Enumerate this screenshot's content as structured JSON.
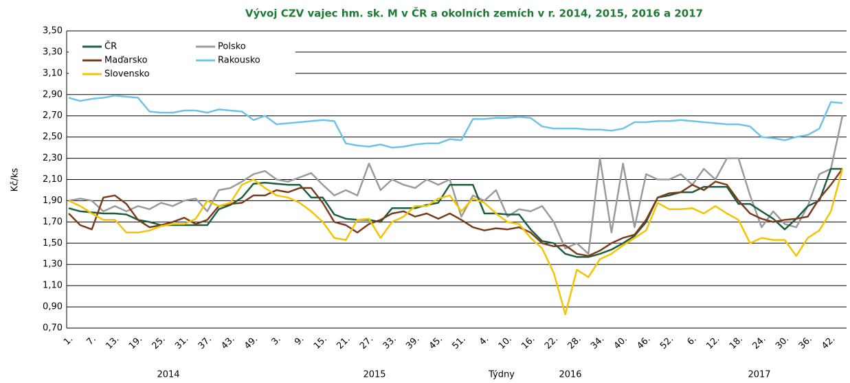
{
  "chart_data": {
    "type": "line",
    "title": "Vývoj CZV vajec hm. sk. M v ČR a okolních  zemích v r. 2014, 2015, 2016 a 2017",
    "ylabel": "Kč/ks",
    "xlabel": "Týdny",
    "year_labels": [
      "2014",
      "2015",
      "2016",
      "2017"
    ],
    "legend": "upper left",
    "grid": true,
    "ylim": [
      0.7,
      3.5
    ],
    "yticks": [
      {
        "value": 0.7,
        "label": "0,70"
      },
      {
        "value": 0.9,
        "label": "0,90"
      },
      {
        "value": 1.1,
        "label": "1,10"
      },
      {
        "value": 1.3,
        "label": "1,30"
      },
      {
        "value": 1.5,
        "label": "1,50"
      },
      {
        "value": 1.7,
        "label": "1,70"
      },
      {
        "value": 1.9,
        "label": "1,90"
      },
      {
        "value": 2.1,
        "label": "2,10"
      },
      {
        "value": 2.3,
        "label": "2,30"
      },
      {
        "value": 2.5,
        "label": "2,50"
      },
      {
        "value": 2.7,
        "label": "2,70"
      },
      {
        "value": 2.9,
        "label": "2,90"
      },
      {
        "value": 3.1,
        "label": "3,10"
      },
      {
        "value": 3.3,
        "label": "3,30"
      },
      {
        "value": 3.5,
        "label": "3,50"
      }
    ],
    "categories": [
      "1.",
      null,
      "7.",
      null,
      "13.",
      null,
      "19.",
      null,
      "25.",
      null,
      "31.",
      null,
      "37.",
      null,
      "43.",
      null,
      "49.",
      null,
      "3.",
      null,
      "9.",
      null,
      "15.",
      null,
      "21.",
      null,
      "27.",
      null,
      "33.",
      null,
      "39.",
      null,
      "45.",
      null,
      "51.",
      null,
      "4.",
      null,
      "10.",
      null,
      "16.",
      null,
      "22.",
      null,
      "28.",
      null,
      "34.",
      null,
      "40.",
      null,
      "46.",
      null,
      "52.",
      null,
      "6.",
      null,
      "12.",
      null,
      "18.",
      null,
      "24.",
      null,
      "30.",
      null,
      "36.",
      null,
      "42.",
      null
    ],
    "series": [
      {
        "name": "ČR",
        "color": "#1a5e3a",
        "values": [
          1.83,
          1.8,
          1.79,
          1.78,
          1.78,
          1.77,
          1.72,
          1.7,
          1.67,
          1.67,
          1.67,
          1.67,
          1.67,
          1.82,
          1.86,
          1.93,
          2.06,
          2.07,
          2.06,
          2.05,
          2.05,
          1.93,
          1.93,
          1.77,
          1.73,
          1.72,
          1.72,
          1.7,
          1.83,
          1.83,
          1.83,
          1.86,
          1.88,
          2.05,
          2.05,
          2.05,
          1.78,
          1.78,
          1.77,
          1.77,
          1.63,
          1.52,
          1.5,
          1.4,
          1.37,
          1.37,
          1.4,
          1.44,
          1.5,
          1.57,
          1.7,
          1.93,
          1.95,
          1.98,
          1.98,
          2.03,
          2.03,
          2.03,
          1.87,
          1.87,
          1.8,
          1.73,
          1.63,
          1.73,
          1.85,
          1.9,
          2.2,
          2.2
        ]
      },
      {
        "name": "Maďarsko",
        "color": "#7a3b1c",
        "values": [
          1.78,
          1.67,
          1.63,
          1.93,
          1.95,
          1.87,
          1.72,
          1.65,
          1.67,
          1.7,
          1.74,
          1.68,
          1.72,
          1.85,
          1.87,
          1.88,
          1.95,
          1.95,
          2.0,
          1.98,
          2.02,
          2.02,
          1.88,
          1.7,
          1.67,
          1.6,
          1.68,
          1.72,
          1.78,
          1.8,
          1.75,
          1.78,
          1.73,
          1.78,
          1.72,
          1.65,
          1.62,
          1.64,
          1.63,
          1.65,
          1.6,
          1.5,
          1.47,
          1.48,
          1.4,
          1.38,
          1.43,
          1.5,
          1.55,
          1.58,
          1.72,
          1.93,
          1.97,
          1.98,
          2.05,
          2.0,
          2.08,
          2.05,
          1.9,
          1.78,
          1.73,
          1.7,
          1.72,
          1.73,
          1.75,
          1.92,
          2.05,
          2.2
        ]
      },
      {
        "name": "Slovensko",
        "color": "#f5c300",
        "values": [
          1.9,
          1.85,
          1.78,
          1.72,
          1.72,
          1.6,
          1.6,
          1.62,
          1.66,
          1.68,
          1.68,
          1.73,
          1.9,
          1.85,
          1.88,
          2.05,
          2.1,
          2.02,
          1.95,
          1.93,
          1.88,
          1.8,
          1.7,
          1.55,
          1.53,
          1.72,
          1.73,
          1.55,
          1.7,
          1.75,
          1.85,
          1.85,
          1.92,
          1.95,
          1.8,
          1.92,
          1.88,
          1.78,
          1.7,
          1.68,
          1.55,
          1.45,
          1.22,
          0.83,
          1.25,
          1.18,
          1.35,
          1.4,
          1.48,
          1.55,
          1.62,
          1.88,
          1.82,
          1.82,
          1.83,
          1.78,
          1.85,
          1.78,
          1.72,
          1.5,
          1.55,
          1.53,
          1.53,
          1.38,
          1.55,
          1.62,
          1.8,
          2.2
        ]
      },
      {
        "name": "Polsko",
        "color": "#9a9a9a",
        "values": [
          1.9,
          1.92,
          1.9,
          1.8,
          1.85,
          1.8,
          1.85,
          1.82,
          1.88,
          1.85,
          1.9,
          1.92,
          1.8,
          2.0,
          2.02,
          2.08,
          2.15,
          2.18,
          2.1,
          2.08,
          2.12,
          2.16,
          2.05,
          1.95,
          2.0,
          1.95,
          2.25,
          2.0,
          2.1,
          2.05,
          2.02,
          2.1,
          2.05,
          2.1,
          1.75,
          1.95,
          1.9,
          2.0,
          1.75,
          1.82,
          1.8,
          1.85,
          1.7,
          1.45,
          1.5,
          1.4,
          2.3,
          1.6,
          2.25,
          1.65,
          2.15,
          2.1,
          2.1,
          2.15,
          2.05,
          2.2,
          2.1,
          2.3,
          2.3,
          1.95,
          1.65,
          1.8,
          1.68,
          1.65,
          1.85,
          2.15,
          2.2,
          2.7
        ]
      },
      {
        "name": "Rakousko",
        "color": "#6cc3e8",
        "values": [
          2.87,
          2.84,
          2.86,
          2.87,
          2.89,
          2.88,
          2.87,
          2.74,
          2.73,
          2.73,
          2.75,
          2.75,
          2.73,
          2.76,
          2.75,
          2.74,
          2.66,
          2.7,
          2.62,
          2.63,
          2.64,
          2.65,
          2.66,
          2.65,
          2.44,
          2.42,
          2.41,
          2.43,
          2.4,
          2.41,
          2.43,
          2.44,
          2.44,
          2.48,
          2.47,
          2.67,
          2.67,
          2.68,
          2.68,
          2.69,
          2.68,
          2.6,
          2.58,
          2.58,
          2.58,
          2.57,
          2.57,
          2.56,
          2.58,
          2.64,
          2.64,
          2.65,
          2.65,
          2.66,
          2.65,
          2.64,
          2.63,
          2.62,
          2.62,
          2.6,
          2.5,
          2.49,
          2.47,
          2.5,
          2.52,
          2.58,
          2.83,
          2.82
        ]
      }
    ]
  }
}
